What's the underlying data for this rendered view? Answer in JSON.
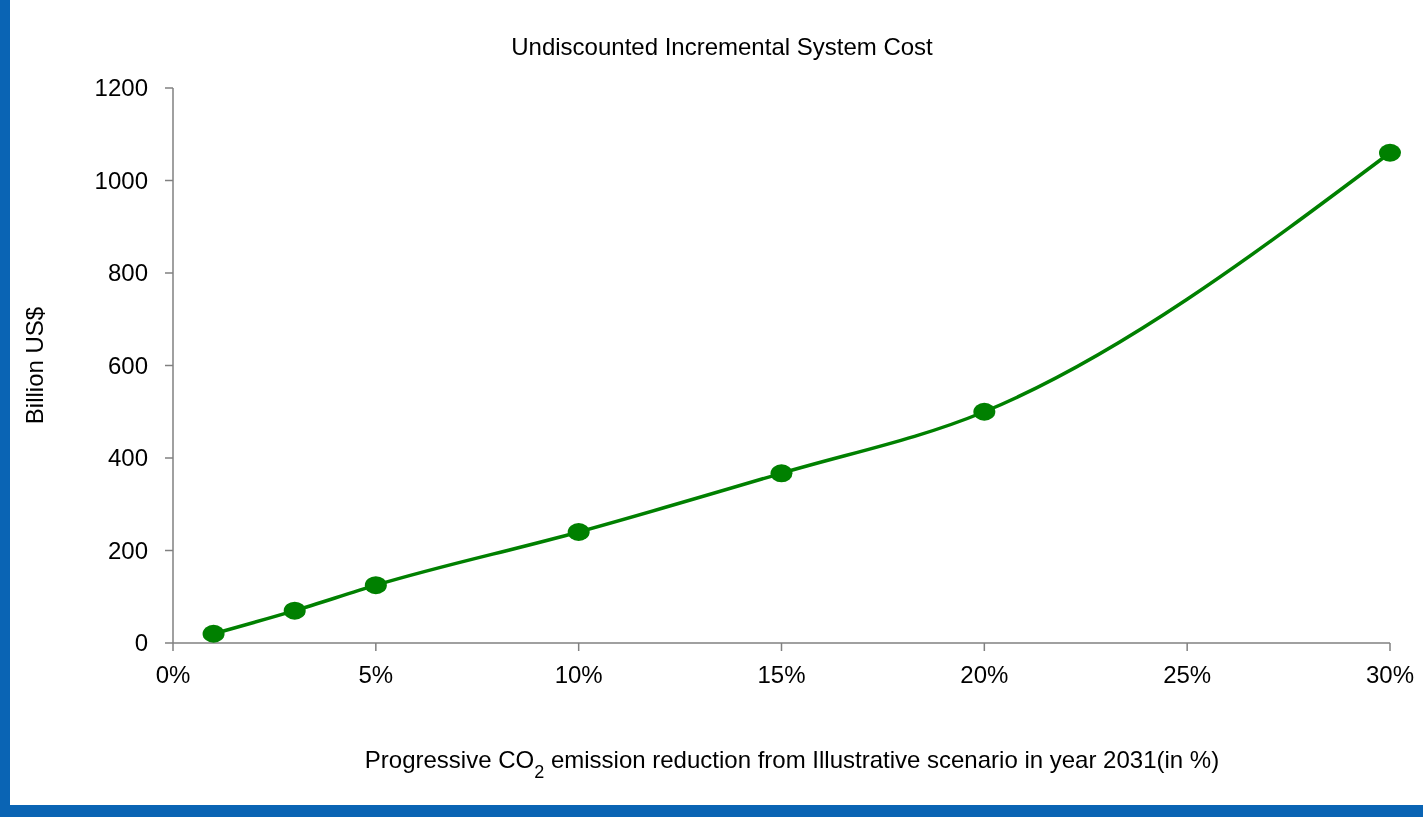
{
  "chart_data": {
    "type": "line",
    "title": "Undiscounted Incremental System Cost",
    "xlabel": "Progressive CO$_{2}$ emission reduction from Illustrative scenario in year 2031(in %)",
    "ylabel": "Billion US$",
    "x": [
      1,
      3,
      5,
      10,
      15,
      20,
      30
    ],
    "series": [
      {
        "color": "#008000",
        "values": [
          20,
          70,
          125,
          240,
          367,
          500,
          1060
        ]
      }
    ],
    "xlim": [
      0,
      30
    ],
    "xticks": [
      {
        "value": 0,
        "label": "0%"
      },
      {
        "value": 5,
        "label": "5%"
      },
      {
        "value": 10,
        "label": "10%"
      },
      {
        "value": 15,
        "label": "15%"
      },
      {
        "value": 20,
        "label": "20%"
      },
      {
        "value": 25,
        "label": "25%"
      },
      {
        "value": 30,
        "label": "30%"
      }
    ],
    "ylim": [
      0,
      1200
    ],
    "yticks": [
      0,
      200,
      400,
      600,
      800,
      1000,
      1200
    ],
    "grid": false,
    "marker": "circle",
    "line_style": "solid"
  }
}
